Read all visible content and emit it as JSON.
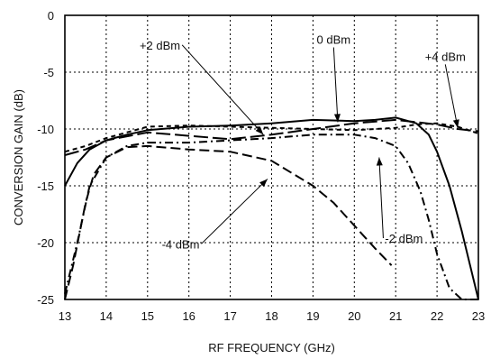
{
  "chart_data": {
    "type": "line",
    "title": "",
    "xlabel": "RF FREQUENCY (GHz)",
    "ylabel": "CONVERSION GAIN (dB)",
    "xlim": [
      13,
      23
    ],
    "ylim": [
      -25,
      0
    ],
    "x_ticks": [
      13,
      14,
      15,
      16,
      17,
      18,
      19,
      20,
      21,
      22,
      23
    ],
    "y_ticks": [
      0,
      -5,
      -10,
      -15,
      -20,
      -25
    ],
    "grid": true,
    "series": [
      {
        "name": "0 dBm",
        "style": "solid",
        "x": [
          13,
          13.3,
          13.6,
          14,
          14.5,
          15,
          16,
          17,
          18,
          19,
          20,
          20.5,
          21,
          21.5,
          21.8,
          22,
          22.3,
          22.6,
          22.8,
          23
        ],
        "y": [
          -15,
          -13,
          -11.8,
          -11,
          -10.5,
          -10.1,
          -9.8,
          -9.7,
          -9.5,
          -9.2,
          -9.3,
          -9.2,
          -9.0,
          -9.5,
          -10.5,
          -12,
          -15,
          -19,
          -22,
          -25
        ]
      },
      {
        "name": "+2 dBm",
        "style": "long-dash",
        "x": [
          13,
          13.5,
          14,
          15,
          16,
          17,
          18,
          19,
          20,
          21,
          21.5,
          22,
          22.5,
          23
        ],
        "y": [
          -12.3,
          -11.8,
          -11.0,
          -10.3,
          -10.6,
          -10.9,
          -10.5,
          -10.0,
          -9.5,
          -9.2,
          -9.4,
          -9.6,
          -10.0,
          -10.2
        ]
      },
      {
        "name": "+4 dBm",
        "style": "short-dash",
        "x": [
          13,
          13.5,
          14,
          15,
          16,
          17,
          18,
          19,
          20,
          21,
          21.5,
          22,
          22.5,
          23
        ],
        "y": [
          -12,
          -11.5,
          -10.8,
          -9.8,
          -9.7,
          -9.8,
          -9.9,
          -10.0,
          -10.1,
          -9.9,
          -9.6,
          -9.5,
          -9.8,
          -10.4
        ]
      },
      {
        "name": "-2 dBm",
        "style": "dash-dot",
        "x": [
          13,
          13.3,
          13.6,
          14,
          14.5,
          15,
          16,
          17,
          18,
          19,
          20,
          20.5,
          21,
          21.3,
          21.6,
          21.8,
          22,
          22.3,
          22.6,
          23
        ],
        "y": [
          -24.5,
          -20,
          -15,
          -12.5,
          -11.5,
          -11.2,
          -11.2,
          -11.0,
          -10.8,
          -10.5,
          -10.5,
          -10.8,
          -11.5,
          -13,
          -15.5,
          -18,
          -21,
          -24,
          -25,
          -25
        ]
      },
      {
        "name": "-4 dBm",
        "style": "dashed",
        "x": [
          13,
          13.2,
          13.5,
          13.7,
          14,
          14.5,
          15,
          16,
          17,
          18,
          19,
          19.5,
          20,
          20.5,
          20.9
        ],
        "y": [
          -25,
          -22,
          -16.5,
          -14,
          -12.5,
          -11.6,
          -11.5,
          -11.8,
          -12.0,
          -12.8,
          -15.0,
          -16.5,
          -18.5,
          -20.5,
          -22
        ]
      }
    ],
    "annotations": [
      {
        "text": "+2 dBm",
        "x": 15.3,
        "y": -3.0,
        "arrow_to": [
          17.8,
          -10.5
        ]
      },
      {
        "text": "0 dBm",
        "x": 19.5,
        "y": -2.5,
        "arrow_to": [
          19.6,
          -9.4
        ]
      },
      {
        "text": "+4 dBm",
        "x": 22.2,
        "y": -4.0,
        "arrow_to": [
          22.5,
          -9.9
        ]
      },
      {
        "text": "-4 dBm",
        "x": 15.8,
        "y": -20.5,
        "arrow_to": [
          17.9,
          -14.4
        ]
      },
      {
        "text": "-2 dBm",
        "x": 21.2,
        "y": -20.0,
        "arrow_to": [
          20.6,
          -12.5
        ]
      }
    ]
  }
}
